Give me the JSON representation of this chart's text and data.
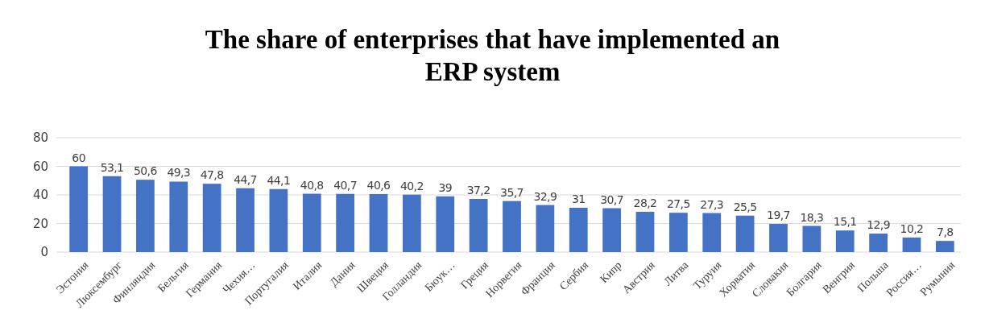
{
  "chart_data": {
    "type": "bar",
    "title": "The share of enterprises that have implemented an ERP system",
    "categories": [
      "Эстония",
      "Люксембург",
      "Финляндия",
      "Бельгия",
      "Германия",
      "Чехия…",
      "Португалия",
      "Италия",
      "Дания",
      "Швеция",
      "Голландия",
      "Бюук…",
      "Греция",
      "Норвегия",
      "Франция",
      "Сербия",
      "Кипр",
      "Австрия",
      "Литва",
      "Туруия",
      "Хорватия",
      "Словакия",
      "Болгария",
      "Венгрия",
      "Польша",
      "Россия…",
      "Румыния"
    ],
    "values": [
      60,
      53.1,
      50.6,
      49.3,
      47.8,
      44.7,
      44.1,
      40.8,
      40.7,
      40.6,
      40.2,
      39,
      37.2,
      35.7,
      32.9,
      31,
      30.7,
      28.2,
      27.5,
      27.3,
      25.5,
      19.7,
      18.3,
      15.1,
      12.9,
      10.2,
      7.8
    ],
    "value_labels": [
      "60",
      "53,1",
      "50,6",
      "49,3",
      "47,8",
      "44,7",
      "44,1",
      "40,8",
      "40,7",
      "40,6",
      "40,2",
      "39",
      "37,2",
      "35,7",
      "32,9",
      "31",
      "30,7",
      "28,2",
      "27,5",
      "27,3",
      "25,5",
      "19,7",
      "18,3",
      "15,1",
      "12,9",
      "10,2",
      "7,8"
    ],
    "color": "#4472c4",
    "ylim": [
      0,
      80
    ],
    "yticks": [
      0,
      20,
      40,
      60,
      80
    ],
    "grid": "y"
  }
}
